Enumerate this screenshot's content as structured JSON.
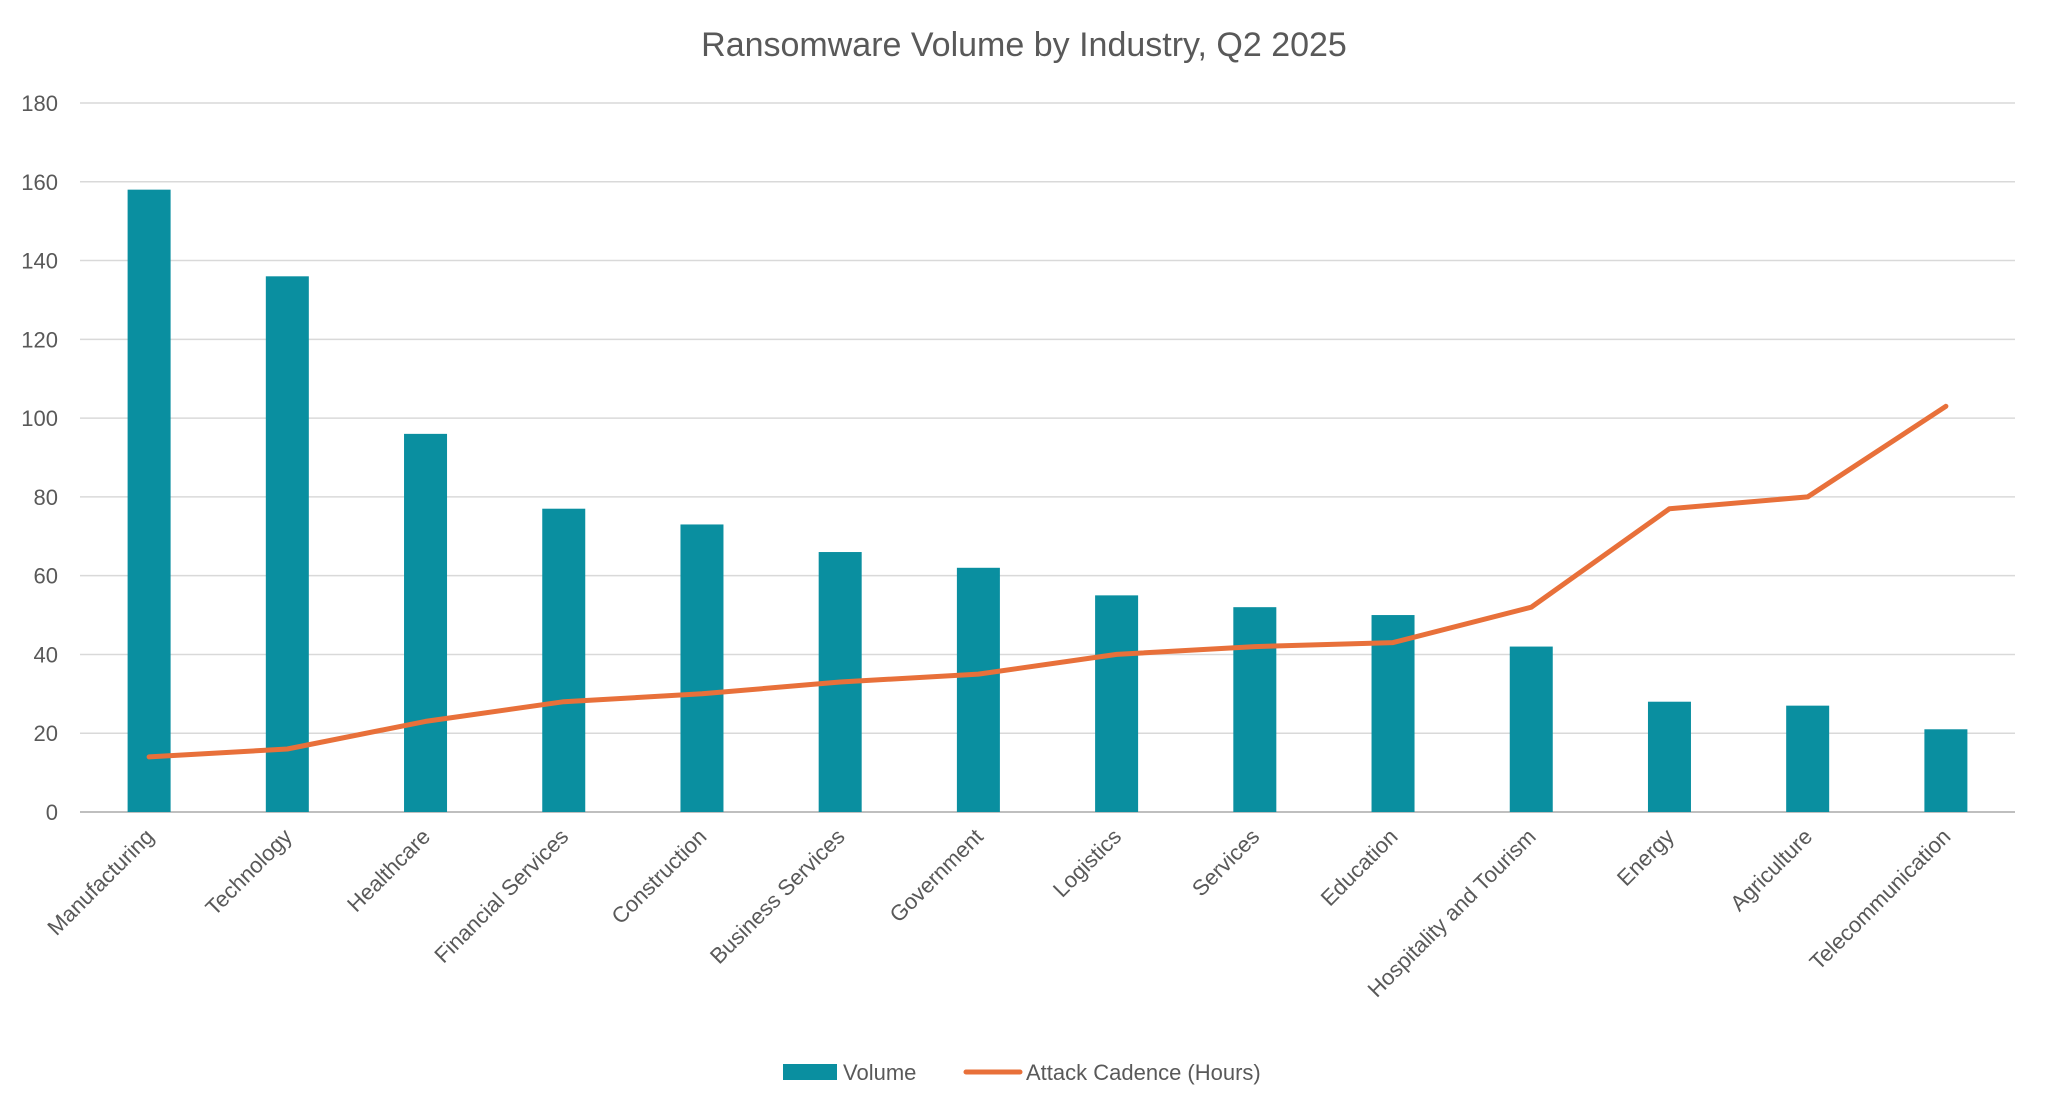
{
  "chart_data": {
    "type": "bar+line",
    "title": "Ransomware Volume by Industry, Q2 2025",
    "categories": [
      "Manufacturing",
      "Technology",
      "Healthcare",
      "Financial Services",
      "Construction",
      "Business Services",
      "Government",
      "Logistics",
      "Services",
      "Education",
      "Hospitality and Tourism",
      "Energy",
      "Agriculture",
      "Telecommunication"
    ],
    "series": [
      {
        "name": "Volume",
        "type": "bar",
        "color": "#0A8FA0",
        "values": [
          158,
          136,
          96,
          77,
          73,
          66,
          62,
          55,
          52,
          50,
          42,
          28,
          27,
          21
        ]
      },
      {
        "name": "Attack Cadence (Hours)",
        "type": "line",
        "color": "#E8703A",
        "values": [
          14,
          16,
          23,
          28,
          30,
          33,
          35,
          40,
          42,
          43,
          52,
          77,
          80,
          103
        ]
      }
    ],
    "y_axis": {
      "min": 0,
      "max": 180,
      "step": 20,
      "ticks": [
        "0",
        "20",
        "40",
        "60",
        "80",
        "100",
        "120",
        "140",
        "160",
        "180"
      ]
    },
    "grid": true,
    "gridline_color": "#D9D9D9",
    "axis_line_color": "#BFBFBF",
    "legend": {
      "position": "bottom-center",
      "items": [
        "Volume",
        "Attack Cadence (Hours)"
      ]
    },
    "xlabel": "",
    "ylabel": ""
  }
}
